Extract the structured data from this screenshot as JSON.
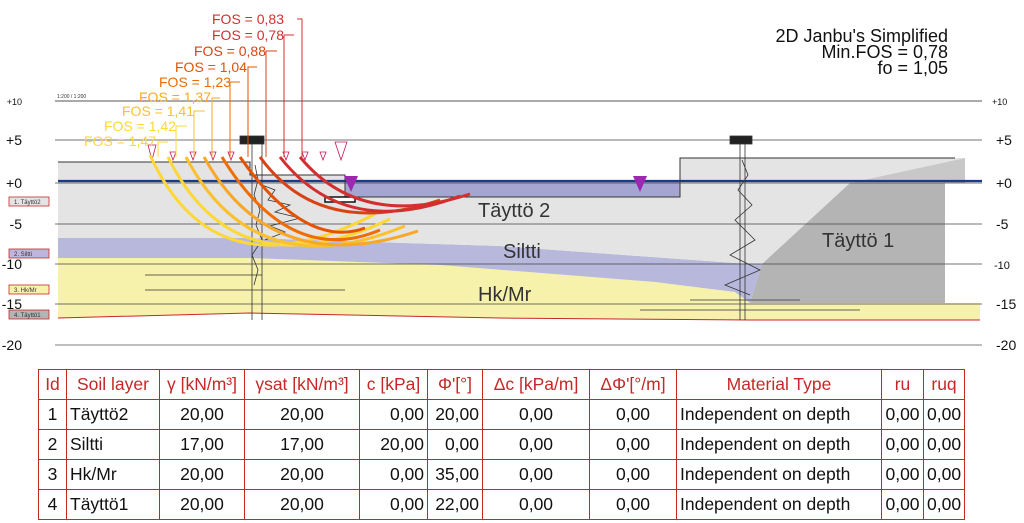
{
  "analysis": {
    "method": "2D Janbu's Simplified",
    "min_fos": "Min.FOS = 0,78",
    "fo": "fo = 1,05"
  },
  "scale_label": "1:200 / 1:200",
  "elevation_labels_left": [
    "+10",
    "+5",
    "+0",
    "-5",
    "-10",
    "-15",
    "-20"
  ],
  "elevation_labels_right": [
    "+10",
    "+5",
    "+0",
    "-5",
    "-10",
    "-15",
    "-20"
  ],
  "fos_labels": [
    {
      "text": "FOS = 0,83",
      "color": "#d32f2f"
    },
    {
      "text": "FOS = 0,78",
      "color": "#d32f2f"
    },
    {
      "text": "FOS = 0,88",
      "color": "#d84315"
    },
    {
      "text": "FOS = 1,04",
      "color": "#e65100"
    },
    {
      "text": "FOS = 1,23",
      "color": "#ef6c00"
    },
    {
      "text": "FOS = 1,37",
      "color": "#f9a825"
    },
    {
      "text": "FOS = 1,41",
      "color": "#fbc02d"
    },
    {
      "text": "FOS = 1,42",
      "color": "#fdd835"
    },
    {
      "text": "FOS = 1,47",
      "color": "#fdd835"
    }
  ],
  "layer_tags": [
    "1. Täyttö2",
    "2. Siltti",
    "3. Hk/Mr",
    "4. Täyttö1"
  ],
  "layers": {
    "taytto2": "Täyttö 2",
    "siltti": "Siltti",
    "hkmr": "Hk/Mr",
    "taytto1": "Täyttö 1"
  },
  "colors": {
    "taytto2_fill": "#e4e4e4",
    "siltti_fill": "#b8b8dc",
    "hkmr_fill": "#f7f2ab",
    "taytto1_fill": "#b4b4b4",
    "water_fill": "#a5a5d2",
    "water_line": "#1a3a8a",
    "table_border": "#c62828",
    "header_text": "#c62828"
  },
  "table": {
    "headers": [
      "Id",
      "Soil layer",
      "γ [kN/m³]",
      "γsat [kN/m³]",
      "c [kPa]",
      "Φ'[°]",
      "Δc [kPa/m]",
      "ΔΦ'[°/m]",
      "Material Type",
      "ru",
      "ruq"
    ],
    "rows": [
      [
        "1",
        "Täyttö2",
        "20,00",
        "20,00",
        "0,00",
        "20,00",
        "0,00",
        "0,00",
        "Independent on depth",
        "0,00",
        "0,00"
      ],
      [
        "2",
        "Siltti",
        "17,00",
        "17,00",
        "20,00",
        "0,00",
        "0,00",
        "0,00",
        "Independent on depth",
        "0,00",
        "0,00"
      ],
      [
        "3",
        "Hk/Mr",
        "20,00",
        "20,00",
        "0,00",
        "35,00",
        "0,00",
        "0,00",
        "Independent on depth",
        "0,00",
        "0,00"
      ],
      [
        "4",
        "Täyttö1",
        "20,00",
        "20,00",
        "0,00",
        "22,00",
        "0,00",
        "0,00",
        "Independent on depth",
        "0,00",
        "0,00"
      ]
    ]
  }
}
